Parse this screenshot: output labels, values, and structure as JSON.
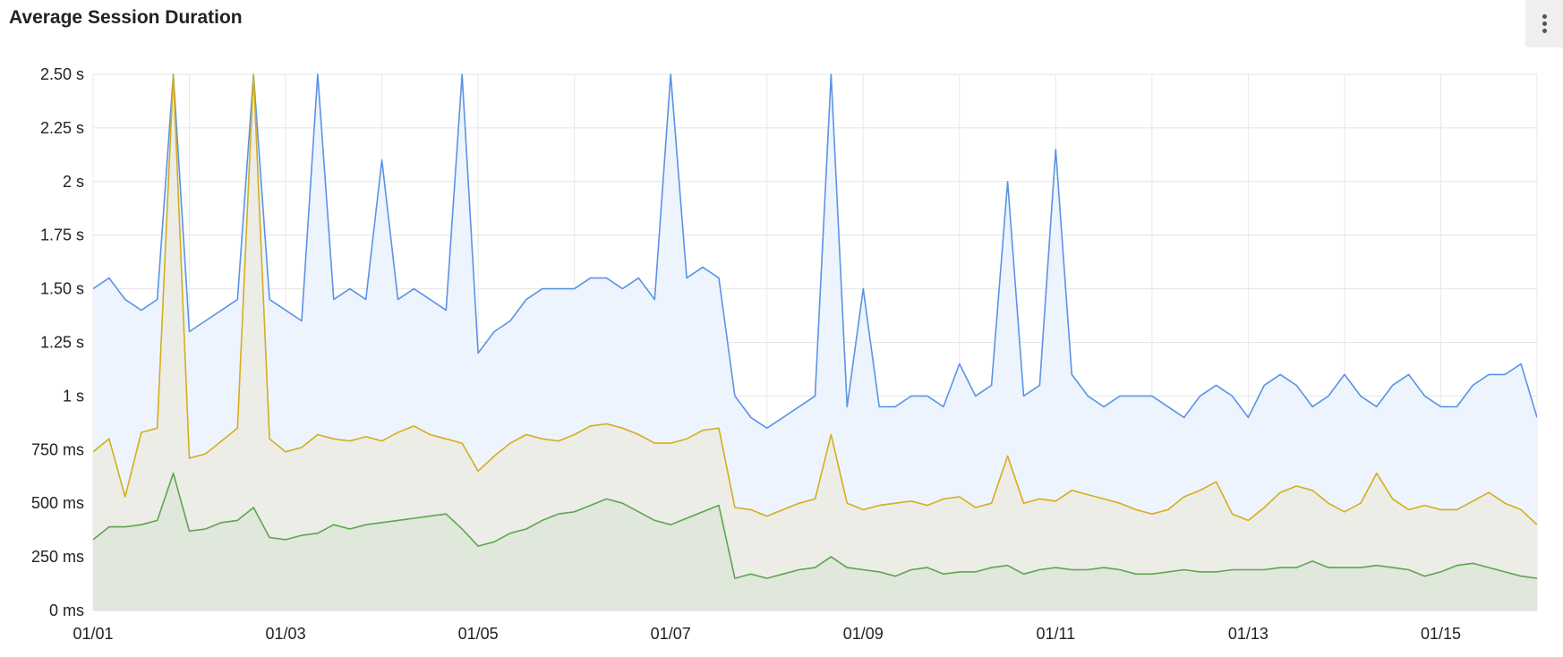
{
  "header": {
    "title": "Average Session Duration",
    "menu_icon": "kebab-vertical-icon"
  },
  "chart_data": {
    "type": "area",
    "title": "Average Session Duration",
    "xlabel": "",
    "ylabel": "",
    "x_range": [
      "01/01 00:00",
      "01/16 00:00"
    ],
    "x_sample_interval_hours": 4,
    "x_tick_labels": [
      "01/01",
      "01/03",
      "01/05",
      "01/07",
      "01/09",
      "01/11",
      "01/13",
      "01/15"
    ],
    "y_unit": "ms",
    "ylim": [
      0,
      2500
    ],
    "y_ticks": [
      0,
      250,
      500,
      750,
      1000,
      1250,
      1500,
      1750,
      2000,
      2250,
      2500
    ],
    "y_tick_labels": [
      "0 ms",
      "250 ms",
      "500 ms",
      "750 ms",
      "1 s",
      "1.25 s",
      "1.50 s",
      "1.75 s",
      "2 s",
      "2.25 s",
      "2.50 s"
    ],
    "grid": true,
    "legend": "none",
    "series": [
      {
        "color": "#5b93e6",
        "fill": "#eef4fd",
        "values": [
          1500,
          1550,
          1450,
          1400,
          1450,
          2600,
          1300,
          1350,
          1400,
          1450,
          2600,
          1450,
          1400,
          1350,
          2600,
          1450,
          1500,
          1450,
          2100,
          1450,
          1500,
          1450,
          1400,
          2600,
          1200,
          1300,
          1350,
          1450,
          1500,
          1500,
          1500,
          1550,
          1550,
          1500,
          1550,
          1450,
          2600,
          1550,
          1600,
          1550,
          1000,
          900,
          850,
          900,
          950,
          1000,
          2600,
          950,
          1500,
          950,
          950,
          1000,
          1000,
          950,
          1150,
          1000,
          1050,
          2000,
          1000,
          1050,
          2150,
          1100,
          1000,
          950,
          1000,
          1000,
          1000,
          950,
          900,
          1000,
          1050,
          1000,
          900,
          1050,
          1100,
          1050,
          950,
          1000,
          1100,
          1000,
          950,
          1050,
          1100,
          1000,
          950,
          950,
          1050,
          1100,
          1100,
          1150,
          900
        ]
      },
      {
        "color": "#d4ae1c",
        "fill": "#ecede6",
        "values": [
          740,
          800,
          530,
          830,
          850,
          2600,
          710,
          730,
          790,
          850,
          2600,
          800,
          740,
          760,
          820,
          800,
          790,
          810,
          790,
          830,
          860,
          820,
          800,
          780,
          650,
          720,
          780,
          820,
          800,
          790,
          820,
          860,
          870,
          850,
          820,
          780,
          780,
          800,
          840,
          850,
          480,
          470,
          440,
          470,
          500,
          520,
          820,
          500,
          470,
          490,
          500,
          510,
          490,
          520,
          530,
          480,
          500,
          720,
          500,
          520,
          510,
          560,
          540,
          520,
          500,
          470,
          450,
          470,
          530,
          560,
          600,
          450,
          420,
          480,
          550,
          580,
          560,
          500,
          460,
          500,
          640,
          520,
          470,
          490,
          470,
          470,
          510,
          550,
          500,
          470,
          400
        ]
      },
      {
        "color": "#5fa452",
        "fill": "#dfe8da",
        "values": [
          330,
          390,
          390,
          400,
          420,
          640,
          370,
          380,
          410,
          420,
          480,
          340,
          330,
          350,
          360,
          400,
          380,
          400,
          410,
          420,
          430,
          440,
          450,
          380,
          300,
          320,
          360,
          380,
          420,
          450,
          460,
          490,
          520,
          500,
          460,
          420,
          400,
          430,
          460,
          490,
          150,
          170,
          150,
          170,
          190,
          200,
          250,
          200,
          190,
          180,
          160,
          190,
          200,
          170,
          180,
          180,
          200,
          210,
          170,
          190,
          200,
          190,
          190,
          200,
          190,
          170,
          170,
          180,
          190,
          180,
          180,
          190,
          190,
          190,
          200,
          200,
          230,
          200,
          200,
          200,
          210,
          200,
          190,
          160,
          180,
          210,
          220,
          200,
          180,
          160,
          150
        ]
      }
    ]
  }
}
